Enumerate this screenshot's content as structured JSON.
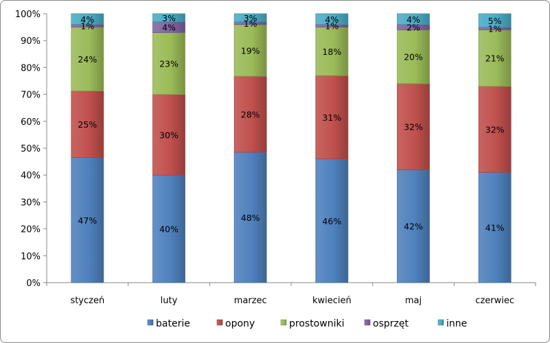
{
  "chart_data": {
    "type": "bar",
    "stacked": true,
    "percent": true,
    "title": "",
    "xlabel": "",
    "ylabel": "",
    "ylim": [
      0,
      100
    ],
    "y_ticks": [
      "0%",
      "10%",
      "20%",
      "30%",
      "40%",
      "50%",
      "60%",
      "70%",
      "80%",
      "90%",
      "100%"
    ],
    "grid": false,
    "legend_position": "bottom",
    "categories": [
      "styczeń",
      "luty",
      "marzec",
      "kwiecień",
      "maj",
      "czerwiec"
    ],
    "series": [
      {
        "name": "baterie",
        "color": "#4F81BD",
        "values": [
          47,
          40,
          48,
          46,
          42,
          41
        ],
        "labels": [
          "47%",
          "40%",
          "48%",
          "46%",
          "42%",
          "41%"
        ]
      },
      {
        "name": "opony",
        "color": "#C0504D",
        "values": [
          25,
          30,
          28,
          31,
          32,
          32
        ],
        "labels": [
          "25%",
          "30%",
          "28%",
          "31%",
          "32%",
          "32%"
        ]
      },
      {
        "name": "prostowniki",
        "color": "#9BBB59",
        "values": [
          24,
          23,
          19,
          18,
          20,
          21
        ],
        "labels": [
          "24%",
          "23%",
          "19%",
          "18%",
          "20%",
          "21%"
        ]
      },
      {
        "name": "osprzęt",
        "color": "#8064A2",
        "values": [
          1,
          4,
          1,
          1,
          2,
          1
        ],
        "labels": [
          "1%",
          "4%",
          "1%",
          "1%",
          "2%",
          "1%"
        ]
      },
      {
        "name": "inne",
        "color": "#4BACC6",
        "values": [
          4,
          3,
          3,
          4,
          4,
          5
        ],
        "labels": [
          "4%",
          "3%",
          "3%",
          "4%",
          "4%",
          "5%"
        ]
      }
    ]
  }
}
